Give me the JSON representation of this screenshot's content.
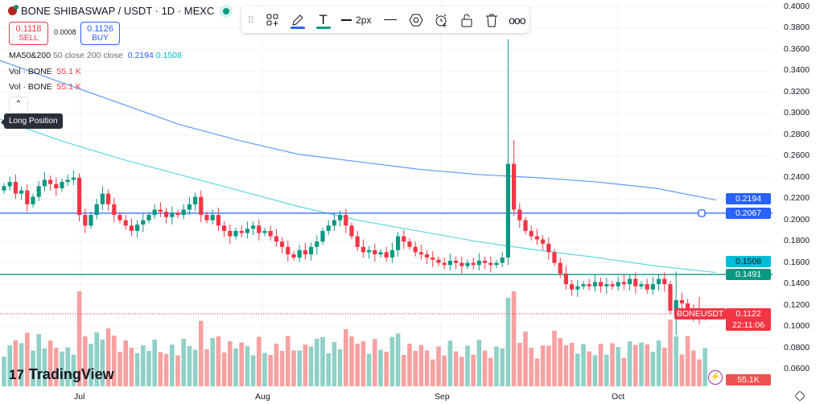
{
  "header": {
    "title": "BONE SHIBASWAP / USDT · 1D · MEXC"
  },
  "trade": {
    "sell_price": "0.1118",
    "sell_label": "SELL",
    "spread": "0.0008",
    "buy_price": "0.1126",
    "buy_label": "BUY"
  },
  "legend": {
    "ma_name": "MA50&200",
    "ma_params": "50 close 200 close",
    "ma200_value": "0.2194",
    "ma50_value": "0.1508",
    "vol1_name": "Vol · BONE",
    "vol1_value": "55.1 K",
    "vol2_name": "Vol · BONE",
    "vol2_value": "55.1 K"
  },
  "tooltip": "Long Position",
  "toolbar": {
    "width_label": "2px",
    "icons": [
      "drag-handle",
      "add-object",
      "pencil",
      "text",
      "line-width",
      "line-style",
      "settings-hexagon",
      "alert-clock",
      "lock-open",
      "trash",
      "more"
    ]
  },
  "colors": {
    "up": "#089981",
    "down": "#f23645",
    "ma200": "#5b9cf6",
    "ma50": "#5ad8e6",
    "hline_blue": "#2962ff",
    "hline_green": "#089981"
  },
  "price_axis": {
    "ticks": [
      "0.4000",
      "0.3800",
      "0.3600",
      "0.3400",
      "0.3200",
      "0.3000",
      "0.2800",
      "0.2600",
      "0.2400",
      "0.2200",
      "0.2000",
      "0.1800",
      "0.1600",
      "0.1400",
      "0.1200",
      "0.1000",
      "0.0800",
      "0.0600"
    ],
    "labels": {
      "ma200": "0.2194",
      "hline_blue": "0.2067",
      "ma50": "0.1508",
      "hline_green": "0.1491",
      "last": "0.1122",
      "countdown": "22:11:06",
      "symbol": "BONEUSDT",
      "volume": "55.1K"
    }
  },
  "time_axis": [
    "Jul",
    "Aug",
    "Sep",
    "Oct"
  ],
  "brand": "TradingView",
  "chart_data": {
    "type": "candlestick",
    "start": "Jun 18",
    "first_open": 0.228,
    "closes": [
      0.232,
      0.236,
      0.225,
      0.228,
      0.215,
      0.222,
      0.232,
      0.238,
      0.234,
      0.23,
      0.236,
      0.238,
      0.24,
      0.205,
      0.195,
      0.205,
      0.215,
      0.225,
      0.215,
      0.205,
      0.2,
      0.195,
      0.19,
      0.196,
      0.2,
      0.205,
      0.21,
      0.208,
      0.203,
      0.207,
      0.205,
      0.21,
      0.215,
      0.222,
      0.205,
      0.2,
      0.205,
      0.195,
      0.19,
      0.185,
      0.19,
      0.188,
      0.192,
      0.195,
      0.188,
      0.19,
      0.185,
      0.18,
      0.175,
      0.168,
      0.165,
      0.172,
      0.168,
      0.175,
      0.18,
      0.19,
      0.195,
      0.2,
      0.205,
      0.195,
      0.185,
      0.175,
      0.17,
      0.172,
      0.168,
      0.17,
      0.165,
      0.172,
      0.185,
      0.18,
      0.175,
      0.17,
      0.168,
      0.165,
      0.163,
      0.16,
      0.158,
      0.162,
      0.16,
      0.157,
      0.16,
      0.158,
      0.162,
      0.16,
      0.158,
      0.16,
      0.165,
      0.253,
      0.21,
      0.2,
      0.19,
      0.185,
      0.182,
      0.178,
      0.17,
      0.16,
      0.15,
      0.14,
      0.135,
      0.138,
      0.14,
      0.138,
      0.142,
      0.138,
      0.14,
      0.138,
      0.142,
      0.14,
      0.145,
      0.138,
      0.14,
      0.135,
      0.14,
      0.145,
      0.14,
      0.115,
      0.125,
      0.122,
      0.115,
      0.112,
      0.11,
      0.112
    ],
    "wick_overrides": [
      {
        "index": 87,
        "high": 0.37,
        "low": 0.158
      },
      {
        "index": 88,
        "high": 0.275
      },
      {
        "index": 116,
        "low": 0.092,
        "high": 0.152
      },
      {
        "index": 120,
        "high": 0.128,
        "low": 0.102
      }
    ],
    "ma200": [
      0.35,
      0.33,
      0.31,
      0.29,
      0.275,
      0.262,
      0.255,
      0.248,
      0.243,
      0.24,
      0.236,
      0.23,
      0.219
    ],
    "ma50": [
      0.295,
      0.275,
      0.258,
      0.243,
      0.228,
      0.213,
      0.2,
      0.19,
      0.18,
      0.172,
      0.165,
      0.157,
      0.151
    ],
    "hlines": [
      0.2067,
      0.1491
    ],
    "ylim": [
      0.06,
      0.4
    ]
  }
}
